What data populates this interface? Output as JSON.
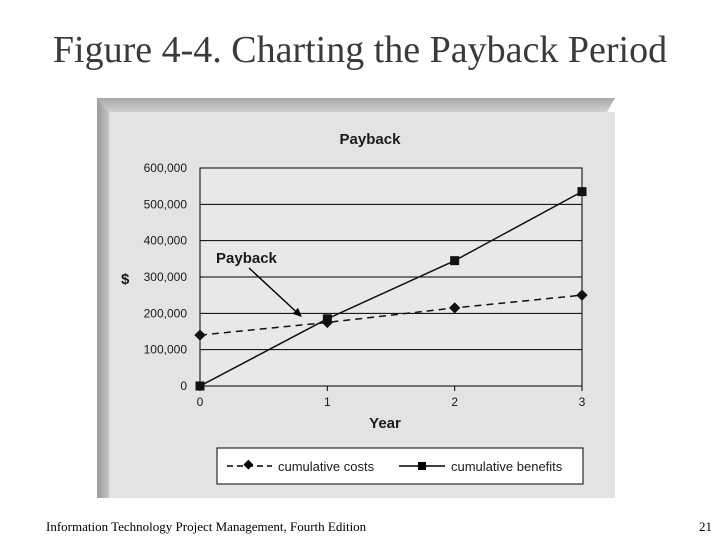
{
  "slide": {
    "title": "Figure 4-4. Charting the Payback Period",
    "footer_left": "Information Technology Project Management, Fourth Edition",
    "page_number": "21"
  },
  "chart_data": {
    "type": "line",
    "title": "Payback",
    "xlabel": "Year",
    "ylabel": "$",
    "x": [
      0,
      1,
      2,
      3
    ],
    "xticks": [
      "0",
      "1",
      "2",
      "3"
    ],
    "yticks": [
      "0",
      "100,000",
      "200,000",
      "300,000",
      "400,000",
      "500,000",
      "600,000"
    ],
    "ytick_values": [
      0,
      100000,
      200000,
      300000,
      400000,
      500000,
      600000
    ],
    "ylim": [
      0,
      600000
    ],
    "xlim": [
      0,
      3
    ],
    "grid": true,
    "legend_position": "bottom",
    "series": [
      {
        "name": "cumulative costs",
        "values": [
          140000,
          175000,
          215000,
          250000
        ],
        "marker": "diamond",
        "line": "dashed",
        "color": "#111111"
      },
      {
        "name": "cumulative benefits",
        "values": [
          0,
          185000,
          345000,
          535000
        ],
        "marker": "square",
        "line": "solid",
        "color": "#111111"
      }
    ],
    "annotation": {
      "text": "Payback",
      "x": 0.8,
      "y": 190000
    },
    "colors": {
      "panel": "#e3e3e3",
      "plot": "#e8e8e8",
      "legend_bg": "#ffffff"
    }
  }
}
